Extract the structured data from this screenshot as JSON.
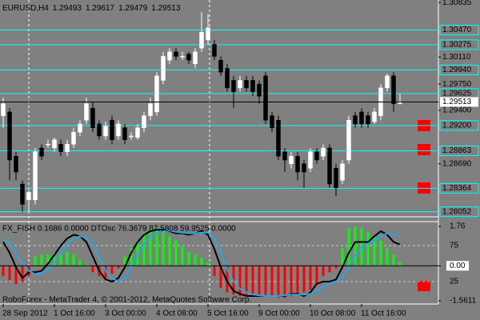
{
  "chart_data": [
    {
      "type": "candlestick",
      "title": "EURUSD,H4",
      "categories": [
        "28 Sep 2012",
        null,
        null,
        null,
        null,
        null,
        null,
        null,
        "1 Oct 16:00",
        null,
        null,
        null,
        null,
        null,
        null,
        null,
        "3 Oct 00:00",
        null,
        null,
        null,
        null,
        null,
        null,
        null,
        "4 Oct 08:00",
        null,
        null,
        null,
        null,
        null,
        null,
        null,
        "5 Oct 16:00",
        null,
        null,
        null,
        null,
        null,
        null,
        null,
        "9 Oct 00:00",
        null,
        null,
        null,
        null,
        null,
        null,
        null,
        "10 Oct 08:00",
        null,
        null,
        null,
        null,
        null,
        null,
        null,
        "11 Oct 16:00",
        null,
        null,
        null,
        null,
        null,
        null
      ],
      "open": [
        1.2933,
        1.2938,
        1.2879,
        1.2842,
        1.2821,
        1.2821,
        1.289,
        1.2895,
        1.289,
        1.2895,
        1.2885,
        1.2895,
        1.2911,
        1.2927,
        1.2943,
        1.2922,
        1.2906,
        1.2927,
        1.2906,
        1.2917,
        1.2906,
        1.2904,
        1.2917,
        1.2933,
        1.2938,
        1.298,
        1.3007,
        1.3018,
        1.3012,
        1.3015,
        1.3002,
        1.3023,
        1.3034,
        1.3028,
        1.3007,
        1.2996,
        1.298,
        1.297,
        1.298,
        1.298,
        1.2975,
        1.2986,
        1.2933,
        1.2927,
        1.2885,
        1.2869,
        1.2879,
        1.2869,
        1.2863,
        1.2885,
        1.2879,
        1.289,
        1.2863,
        1.2847,
        1.2874,
        1.2933,
        1.2938,
        1.2933,
        1.2925,
        1.2933,
        1.297,
        1.2986,
        1.29493
      ],
      "high": [
        1.2957,
        1.2943,
        1.2885,
        1.2847,
        1.2834,
        1.289,
        1.2895,
        1.2901,
        1.2904,
        1.2901,
        1.2901,
        1.2917,
        1.2927,
        1.2957,
        1.2951,
        1.2927,
        1.2925,
        1.2933,
        1.2927,
        1.2922,
        1.2911,
        1.2922,
        1.2938,
        1.2957,
        1.2991,
        1.3018,
        1.3023,
        1.3023,
        1.3018,
        1.3018,
        1.3023,
        1.3071,
        1.3068,
        1.3034,
        1.3012,
        1.3002,
        1.2986,
        1.2986,
        1.2986,
        1.2986,
        1.298,
        1.2991,
        1.2938,
        1.2933,
        1.289,
        1.2885,
        1.2885,
        1.2874,
        1.289,
        1.289,
        1.2895,
        1.2895,
        1.2869,
        1.2874,
        1.2933,
        1.2938,
        1.2943,
        1.2938,
        1.2943,
        1.2975,
        1.2989,
        1.2991,
        1.29617
      ],
      "low": [
        1.2917,
        1.2847,
        1.2847,
        1.2805,
        1.2805,
        1.2815,
        1.2874,
        1.289,
        1.2885,
        1.2879,
        1.2879,
        1.289,
        1.2906,
        1.2922,
        1.2911,
        1.2901,
        1.2901,
        1.2895,
        1.2901,
        1.2895,
        1.2901,
        1.2901,
        1.2911,
        1.2927,
        1.2933,
        1.2975,
        1.3002,
        1.3007,
        1.3007,
        1.3002,
        1.2996,
        1.3018,
        1.3028,
        1.3007,
        1.2986,
        1.2965,
        1.2943,
        1.2965,
        1.2965,
        1.2959,
        1.2949,
        1.2922,
        1.2911,
        1.2874,
        1.2858,
        1.2863,
        1.2847,
        1.2837,
        1.2858,
        1.2869,
        1.2874,
        1.2837,
        1.2826,
        1.2842,
        1.2869,
        1.2917,
        1.2917,
        1.2917,
        1.2922,
        1.2927,
        1.2965,
        1.2938,
        1.29479
      ],
      "close": [
        1.2949,
        1.2874,
        1.2858,
        1.2815,
        1.2831,
        1.2885,
        1.2879,
        1.2895,
        1.2901,
        1.2885,
        1.2895,
        1.2911,
        1.2922,
        1.2949,
        1.2917,
        1.2906,
        1.2919,
        1.2901,
        1.2922,
        1.2901,
        1.2906,
        1.2917,
        1.2933,
        1.2949,
        1.2986,
        1.3012,
        1.3018,
        1.3012,
        1.3012,
        1.3007,
        1.3018,
        1.3044,
        1.305,
        1.3012,
        1.2991,
        1.297,
        1.2965,
        1.298,
        1.297,
        1.2965,
        1.2959,
        1.2927,
        1.2917,
        1.2879,
        1.2874,
        1.2879,
        1.2858,
        1.2858,
        1.2885,
        1.2874,
        1.289,
        1.2842,
        1.2837,
        1.2869,
        1.2927,
        1.2922,
        1.2922,
        1.2922,
        1.2938,
        1.297,
        1.2986,
        1.2949,
        1.29513
      ],
      "up_color": "#ffffff",
      "down_color": "#000000",
      "ylim": [
        1.27995,
        1.3087
      ],
      "yticks": [
        1.30835,
        {
          "value": 1.3011,
          "label": "1.30110"
        },
        {
          "value": 1.2975,
          "label": "1.29750"
        },
        {
          "value": 1.294,
          "label": "1.29400"
        },
        {
          "value": 1.2869,
          "label": "1.28690"
        }
      ],
      "levels": [
        {
          "value": 1.3047,
          "label": "1.30470"
        },
        1.30275,
        {
          "value": 1.2994,
          "label": "1.29940"
        },
        1.29625,
        {
          "value": 1.292,
          "label": "1.29200"
        },
        1.28863,
        1.28364,
        1.28052
      ],
      "level_color": "#00ffff"
    },
    {
      "type": "oscillator",
      "title": "FX_FISH 0.1686 0.0000  DTOsc 76.3679 87.5808 59.9525 0.0000",
      "series": [
        {
          "color": "#00ff00",
          "negative_color": "#ff0000",
          "values": [
            -0.46,
            -0.64,
            -0.82,
            -0.71,
            -0.46,
            0.43,
            0.5,
            0.5,
            0.57,
            0.5,
            0.64,
            0.5,
            0.25,
            0.07,
            -0.29,
            -0.46,
            -0.54,
            -0.36,
            -0.11,
            0.43,
            0.79,
            1.14,
            1.5,
            1.68,
            1.68,
            1.5,
            1.32,
            1.14,
            0.86,
            0.61,
            0.5,
            0.36,
            0.14,
            -0.46,
            -1.0,
            -1.18,
            -1.29,
            -1.36,
            -1.36,
            -1.29,
            -1.29,
            -1.36,
            -1.36,
            -1.43,
            -1.43,
            -1.36,
            -1.29,
            -1.18,
            -1.07,
            -0.82,
            -0.46,
            -0.29,
            -0.11,
            0.79,
            1.68,
            1.75,
            1.68,
            1.5,
            1.32,
            1.14,
            0.79,
            0.5,
            0.1686
          ]
        },
        {
          "color": "#000000",
          "axis": "y2",
          "values": [
            80,
            65,
            45,
            30,
            38,
            38,
            40,
            50,
            62,
            75,
            85,
            90,
            88,
            80,
            60,
            40,
            28,
            25,
            30,
            45,
            65,
            80,
            90,
            95,
            97,
            97,
            95,
            92,
            92,
            90,
            92,
            95,
            90,
            70,
            45,
            25,
            12,
            8,
            5,
            5,
            5,
            5,
            5,
            5,
            5,
            8,
            8,
            5,
            10,
            22,
            25,
            25,
            28,
            45,
            65,
            80,
            80,
            80,
            88,
            95,
            90,
            80,
            76.3679
          ]
        },
        {
          "color": "#22a8e8",
          "axis": "y2",
          "values": [
            85,
            78,
            65,
            50,
            40,
            35,
            36,
            42,
            52,
            65,
            77,
            85,
            88,
            86,
            75,
            58,
            40,
            30,
            25,
            30,
            45,
            62,
            77,
            88,
            93,
            95,
            96,
            94,
            93,
            92,
            92,
            93,
            93,
            85,
            65,
            42,
            25,
            15,
            10,
            7,
            6,
            5,
            5,
            5,
            6,
            7,
            7,
            7,
            8,
            12,
            18,
            22,
            25,
            32,
            45,
            62,
            72,
            78,
            82,
            88,
            92,
            90,
            87.5808
          ]
        }
      ],
      "ylim": [
        -1.704,
        1.974
      ],
      "yticks": [
        1.76,
        {
          "value": 0,
          "label": "0.00"
        },
        -1.5611
      ],
      "y2lim": [
        -6.1,
        108.3
      ],
      "y2ticks": [
        75,
        25
      ],
      "annotation": "RoboForex - MetaTrader 4, © 2001-2012, MetaQuotes Software Corp."
    }
  ]
}
